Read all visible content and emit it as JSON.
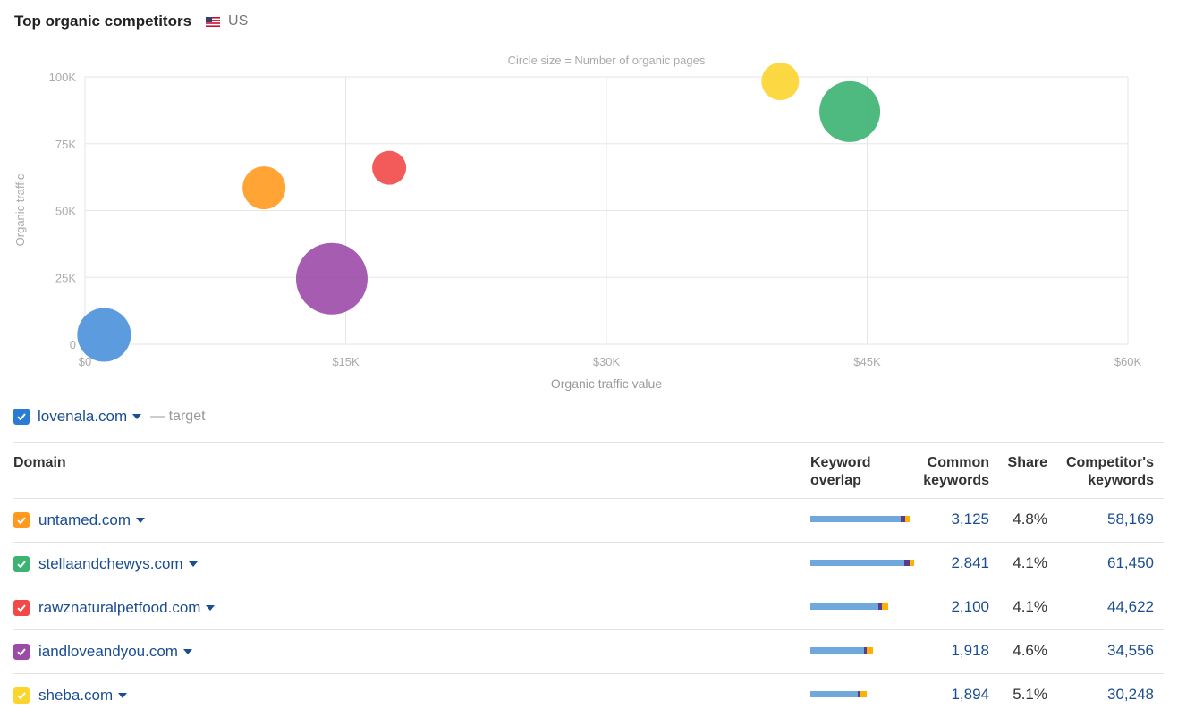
{
  "header": {
    "title": "Top organic competitors",
    "country": "US"
  },
  "chart_data": {
    "type": "scatter",
    "subtitle": "Circle size = Number of organic pages",
    "xlabel": "Organic traffic value",
    "ylabel": "Organic traffic",
    "xlim": [
      0,
      60000
    ],
    "ylim": [
      0,
      100000
    ],
    "x_ticks": [
      "$0",
      "$15K",
      "$30K",
      "$45K",
      "$60K"
    ],
    "y_ticks": [
      "0",
      "25K",
      "50K",
      "75K",
      "100K"
    ],
    "grid": true,
    "points": [
      {
        "domain": "lovenala.com",
        "x": 1100,
        "y": 3500,
        "size": 30,
        "color": "#4a90d9"
      },
      {
        "domain": "untamed.com",
        "x": 10300,
        "y": 58500,
        "size": 24,
        "color": "#ff9a1f"
      },
      {
        "domain": "stellaandchewys.com",
        "x": 44000,
        "y": 87000,
        "size": 34,
        "color": "#3cb371"
      },
      {
        "domain": "rawznaturalpetfood.com",
        "x": 17500,
        "y": 66000,
        "size": 19,
        "color": "#f24848"
      },
      {
        "domain": "iandloveandyou.com",
        "x": 14200,
        "y": 24500,
        "size": 40,
        "color": "#9b4aa8"
      },
      {
        "domain": "sheba.com",
        "x": 40000,
        "y": 98300,
        "size": 21,
        "color": "#fcd42e"
      }
    ]
  },
  "target": {
    "domain": "lovenala.com",
    "label": "— target",
    "color": "#2a7cd3"
  },
  "table": {
    "columns": {
      "domain": "Domain",
      "overlap_line1": "Keyword",
      "overlap_line2": "overlap",
      "common_line1": "Common",
      "common_line2": "keywords",
      "share": "Share",
      "comp_line1": "Competitor's",
      "comp_line2": "keywords"
    },
    "rows": [
      {
        "domain": "untamed.com",
        "color": "#ff9a1f",
        "common": "3,125",
        "share": "4.8%",
        "competitor": "58,169",
        "overlap": [
          0.86,
          0.05,
          0.04
        ]
      },
      {
        "domain": "stellaandchewys.com",
        "color": "#3cb371",
        "common": "2,841",
        "share": "4.1%",
        "competitor": "61,450",
        "overlap": [
          0.9,
          0.05,
          0.04
        ]
      },
      {
        "domain": "rawznaturalpetfood.com",
        "color": "#f24848",
        "common": "2,100",
        "share": "4.1%",
        "competitor": "44,622",
        "overlap": [
          0.65,
          0.03,
          0.06
        ]
      },
      {
        "domain": "iandloveandyou.com",
        "color": "#9b4aa8",
        "common": "1,918",
        "share": "4.6%",
        "competitor": "34,556",
        "overlap": [
          0.51,
          0.03,
          0.06
        ]
      },
      {
        "domain": "sheba.com",
        "color": "#fcd42e",
        "common": "1,894",
        "share": "5.1%",
        "competitor": "30,248",
        "overlap": [
          0.45,
          0.03,
          0.06
        ]
      }
    ],
    "overlap_colors": [
      "#6fa8dc",
      "#5a3a8c",
      "#ffb000"
    ]
  }
}
